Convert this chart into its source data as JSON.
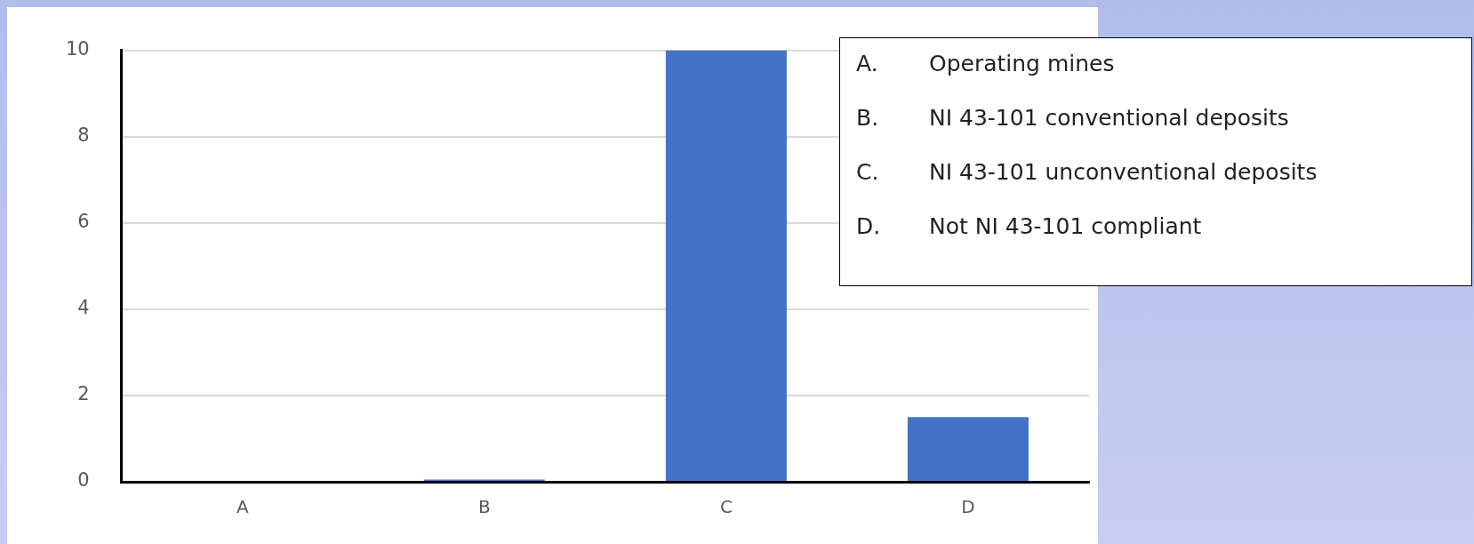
{
  "chart_data": {
    "type": "bar",
    "categories": [
      "A",
      "B",
      "C",
      "D"
    ],
    "values": [
      0,
      0.05,
      10,
      1.5
    ],
    "color": "#4472c4",
    "ylim": [
      0,
      10
    ],
    "yticks": [
      0,
      2,
      4,
      6,
      8,
      10
    ],
    "grid": "y",
    "legend": false,
    "annotations": [
      "A. Operating mines",
      "B. NI 43-101 conventional deposits",
      "C. NI 43-101 unconventional deposits",
      "D. Not NI 43-101 compliant"
    ]
  }
}
